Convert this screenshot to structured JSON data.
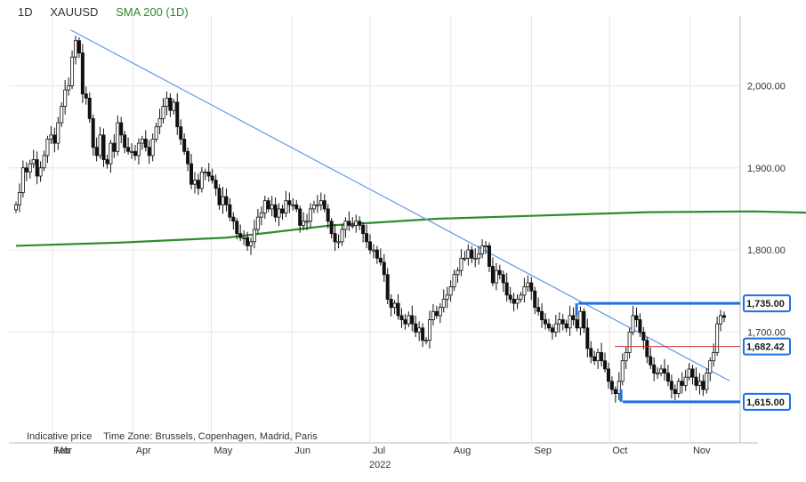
{
  "header": {
    "interval": "1D",
    "symbol": "XAUUSD",
    "indicator": "SMA 200  (1D)"
  },
  "footer": {
    "price_type": "Indicative price",
    "timezone": "Time Zone: Brussels, Copenhagen, Madrid, Paris"
  },
  "colors": {
    "up": "#ffffff",
    "down": "#111111",
    "wick": "#111111",
    "sma": "#2e8b2e",
    "trendline": "#6aa0e8",
    "channel": "#1e6fe8",
    "marker": "#cc3333",
    "grid": "#e6e6e6"
  },
  "chart_data": {
    "type": "candlestick",
    "symbol": "XAUUSD",
    "interval": "1D",
    "year_label": "2022",
    "x_labels": [
      "Feb",
      "Mar",
      "Apr",
      "May",
      "Jun",
      "Jul",
      "Aug",
      "Sep",
      "Oct",
      "Nov"
    ],
    "y_ticks": [
      1800,
      1900,
      2000
    ],
    "y_tick_labels": [
      "1,800.00",
      "1,900.00",
      "2,000.00"
    ],
    "y_tick_label_1700": "1,700.00",
    "ylim": [
      1565,
      2085
    ],
    "month_starts": [
      "2022-02-28",
      "2022-03-01",
      "2022-04-01",
      "2022-05-01",
      "2022-06-01",
      "2022-07-01",
      "2022-08-01",
      "2022-09-01",
      "2022-10-01",
      "2022-11-01"
    ],
    "date_range": [
      "2022-02-15",
      "2022-11-14"
    ],
    "close": [
      1855,
      1870,
      1900,
      1895,
      1905,
      1910,
      1890,
      1900,
      1915,
      1935,
      1940,
      1930,
      1955,
      1975,
      1995,
      2000,
      2035,
      2055,
      2040,
      1990,
      1985,
      1960,
      1925,
      1915,
      1940,
      1910,
      1905,
      1930,
      1920,
      1955,
      1940,
      1925,
      1920,
      1920,
      1915,
      1930,
      1935,
      1925,
      1915,
      1935,
      1950,
      1960,
      1975,
      1985,
      1970,
      1980,
      1950,
      1935,
      1920,
      1905,
      1880,
      1885,
      1875,
      1895,
      1895,
      1890,
      1885,
      1875,
      1855,
      1865,
      1855,
      1840,
      1835,
      1820,
      1815,
      1815,
      1805,
      1810,
      1825,
      1840,
      1845,
      1860,
      1850,
      1855,
      1840,
      1850,
      1845,
      1860,
      1855,
      1855,
      1850,
      1830,
      1835,
      1835,
      1850,
      1855,
      1855,
      1860,
      1850,
      1835,
      1820,
      1810,
      1810,
      1825,
      1835,
      1830,
      1830,
      1835,
      1830,
      1820,
      1810,
      1800,
      1800,
      1790,
      1785,
      1770,
      1740,
      1730,
      1735,
      1720,
      1715,
      1710,
      1720,
      1710,
      1700,
      1705,
      1690,
      1690,
      1715,
      1725,
      1720,
      1730,
      1740,
      1745,
      1755,
      1770,
      1775,
      1790,
      1790,
      1800,
      1790,
      1790,
      1795,
      1805,
      1805,
      1780,
      1760,
      1775,
      1770,
      1760,
      1745,
      1740,
      1735,
      1740,
      1745,
      1755,
      1760,
      1750,
      1730,
      1725,
      1715,
      1710,
      1705,
      1700,
      1710,
      1715,
      1710,
      1705,
      1720,
      1715,
      1705,
      1725,
      1705,
      1680,
      1670,
      1665,
      1675,
      1665,
      1655,
      1640,
      1630,
      1625,
      1640,
      1665,
      1675,
      1700,
      1720,
      1715,
      1700,
      1690,
      1670,
      1660,
      1650,
      1650,
      1655,
      1650,
      1640,
      1630,
      1625,
      1640,
      1635,
      1645,
      1655,
      1645,
      1635,
      1640,
      1630,
      1650,
      1665,
      1675,
      1710,
      1720,
      1718
    ],
    "high_close": 2070,
    "low_close": 1617,
    "sma200": [
      [
        0,
        1805
      ],
      [
        30,
        1809
      ],
      [
        60,
        1815
      ],
      [
        90,
        1830
      ],
      [
        120,
        1838
      ],
      [
        150,
        1842
      ],
      [
        180,
        1846
      ],
      [
        210,
        1847
      ],
      [
        230,
        1845
      ],
      [
        260,
        1835
      ],
      [
        290,
        1812
      ],
      [
        304,
        1806
      ]
    ],
    "trendline": {
      "from": [
        "2022-03-08",
        2068
      ],
      "to": [
        "2022-11-14",
        1645
      ]
    },
    "channel": {
      "upper": 1735.0,
      "lower": 1615.0,
      "start": "2022-09-19"
    },
    "marker_level": 1682.42,
    "price_labels": [
      "1,735.00",
      "1,682.42",
      "1,615.00"
    ]
  }
}
